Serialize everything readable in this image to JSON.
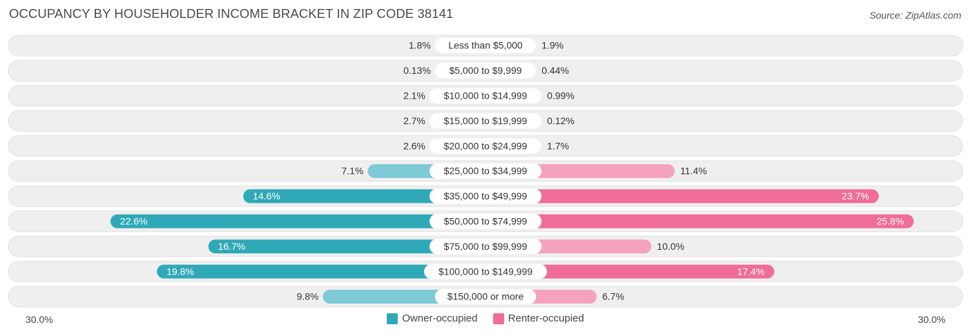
{
  "title": "OCCUPANCY BY HOUSEHOLDER INCOME BRACKET IN ZIP CODE 38141",
  "source": "Source: ZipAtlas.com",
  "axis": {
    "left_label": "30.0%",
    "right_label": "30.0%"
  },
  "legend": {
    "owner_label": "Owner-occupied",
    "renter_label": "Renter-occupied"
  },
  "colors": {
    "owner_light": "#7ecad6",
    "owner_dark": "#2fa9b8",
    "renter_light": "#f5a3bd",
    "renter_dark": "#ef6d97",
    "row_background": "#efefef"
  },
  "chart_data": {
    "type": "bar",
    "orientation": "horizontal-diverging",
    "title": "OCCUPANCY BY HOUSEHOLDER INCOME BRACKET IN ZIP CODE 38141",
    "categories": [
      "Less than $5,000",
      "$5,000 to $9,999",
      "$10,000 to $14,999",
      "$15,000 to $19,999",
      "$20,000 to $24,999",
      "$25,000 to $34,999",
      "$35,000 to $49,999",
      "$50,000 to $74,999",
      "$75,000 to $99,999",
      "$100,000 to $149,999",
      "$150,000 or more"
    ],
    "series": [
      {
        "name": "Owner-occupied",
        "values": [
          1.8,
          0.13,
          2.1,
          2.7,
          2.6,
          7.1,
          14.6,
          22.6,
          16.7,
          19.8,
          9.8
        ],
        "labels": [
          "1.8%",
          "0.13%",
          "2.1%",
          "2.7%",
          "2.6%",
          "7.1%",
          "14.6%",
          "22.6%",
          "16.7%",
          "19.8%",
          "9.8%"
        ]
      },
      {
        "name": "Renter-occupied",
        "values": [
          1.9,
          0.44,
          0.99,
          0.12,
          1.7,
          11.4,
          23.7,
          25.8,
          10.0,
          17.4,
          6.7
        ],
        "labels": [
          "1.9%",
          "0.44%",
          "0.99%",
          "0.12%",
          "1.7%",
          "11.4%",
          "23.7%",
          "25.8%",
          "10.0%",
          "17.4%",
          "6.7%"
        ]
      }
    ],
    "xlim": [
      -30,
      30
    ],
    "legend_position": "bottom-center"
  }
}
